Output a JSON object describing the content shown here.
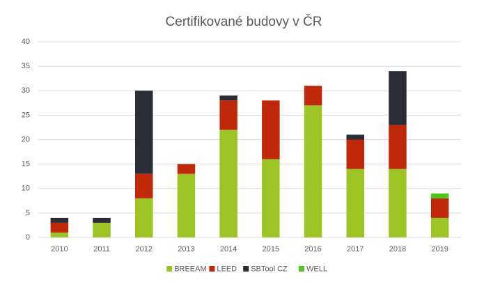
{
  "chart_data": {
    "type": "stacked_bar",
    "title": "Certifikované budovy v ČR",
    "categories": [
      "2010",
      "2011",
      "2012",
      "2013",
      "2014",
      "2015",
      "2016",
      "2017",
      "2018",
      "2019"
    ],
    "series": [
      {
        "name": "BREEAM",
        "color": "#9bc424",
        "values": [
          1,
          3,
          8,
          13,
          22,
          16,
          27,
          14,
          14,
          4
        ]
      },
      {
        "name": "LEED",
        "color": "#c0280a",
        "values": [
          2,
          0,
          5,
          2,
          6,
          12,
          4,
          6,
          9,
          4
        ]
      },
      {
        "name": "SBTool CZ",
        "color": "#2b2d36",
        "values": [
          1,
          1,
          17,
          0,
          1,
          0,
          0,
          1,
          11,
          0
        ]
      },
      {
        "name": "WELL",
        "color": "#4ec522",
        "values": [
          0,
          0,
          0,
          0,
          0,
          0,
          0,
          0,
          0,
          1
        ]
      }
    ],
    "ylim": [
      0,
      40
    ],
    "yticks": [
      0,
      5,
      10,
      15,
      20,
      25,
      30,
      35,
      40
    ],
    "grid": true,
    "legend": "bottom"
  }
}
